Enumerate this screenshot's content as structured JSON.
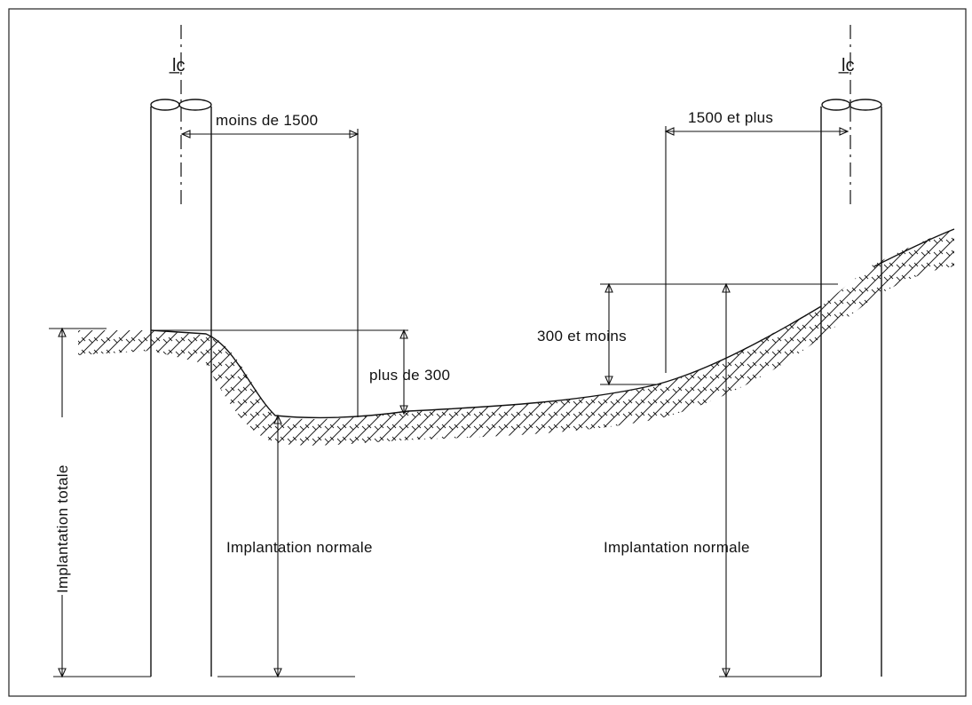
{
  "labels": {
    "centerline_left": "l̲c",
    "centerline_right": "l̲c",
    "moins_de_1500": "moins de 1500",
    "plus_de_300": "plus de 300",
    "mille_cinq_cents_et_plus": "1500 et plus",
    "trois_cents_et_moins": "300 et moins",
    "implantation_totale": "Implantation totale",
    "implantation_normale_left": "Implantation normale",
    "implantation_normale_right": "Implantation normale"
  }
}
